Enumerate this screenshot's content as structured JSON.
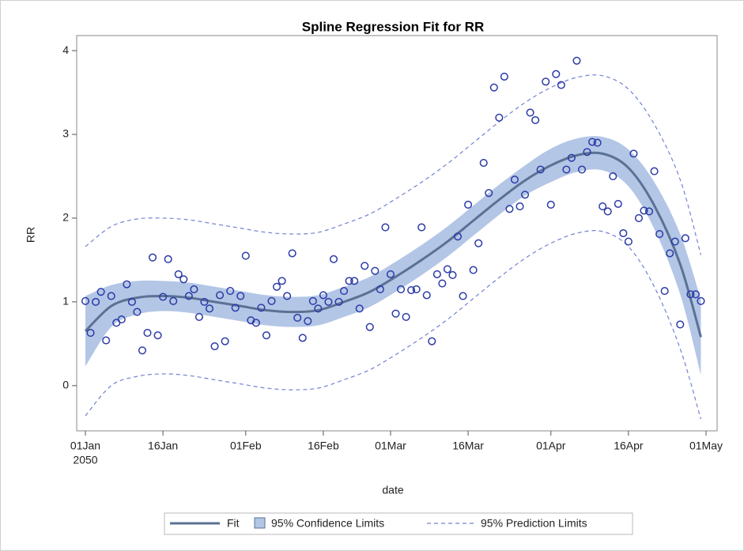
{
  "chart_data": {
    "type": "scatter",
    "title": "Spline Regression Fit for RR",
    "x_label": "date",
    "y_label": "RR",
    "color": "#2b3ba6",
    "x": [
      "2050-01-01",
      "2050-01-02",
      "2050-01-03",
      "2050-01-04",
      "2050-01-05",
      "2050-01-06",
      "2050-01-07",
      "2050-01-08",
      "2050-01-09",
      "2050-01-10",
      "2050-01-11",
      "2050-01-12",
      "2050-01-13",
      "2050-01-14",
      "2050-01-15",
      "2050-01-16",
      "2050-01-17",
      "2050-01-18",
      "2050-01-19",
      "2050-01-20",
      "2050-01-21",
      "2050-01-22",
      "2050-01-23",
      "2050-01-24",
      "2050-01-25",
      "2050-01-26",
      "2050-01-27",
      "2050-01-28",
      "2050-01-29",
      "2050-01-30",
      "2050-01-31",
      "2050-02-01",
      "2050-02-02",
      "2050-02-03",
      "2050-02-04",
      "2050-02-05",
      "2050-02-06",
      "2050-02-07",
      "2050-02-08",
      "2050-02-09",
      "2050-02-10",
      "2050-02-11",
      "2050-02-12",
      "2050-02-13",
      "2050-02-14",
      "2050-02-15",
      "2050-02-16",
      "2050-02-17",
      "2050-02-18",
      "2050-02-19",
      "2050-02-20",
      "2050-02-21",
      "2050-02-22",
      "2050-02-23",
      "2050-02-24",
      "2050-02-25",
      "2050-02-26",
      "2050-02-27",
      "2050-02-28",
      "2050-03-01",
      "2050-03-02",
      "2050-03-03",
      "2050-03-04",
      "2050-03-05",
      "2050-03-06",
      "2050-03-07",
      "2050-03-08",
      "2050-03-09",
      "2050-03-10",
      "2050-03-11",
      "2050-03-12",
      "2050-03-13",
      "2050-03-14",
      "2050-03-15",
      "2050-03-16",
      "2050-03-17",
      "2050-03-18",
      "2050-03-19",
      "2050-03-20",
      "2050-03-21",
      "2050-03-22",
      "2050-03-23",
      "2050-03-24",
      "2050-03-25",
      "2050-03-26",
      "2050-03-27",
      "2050-03-28",
      "2050-03-29",
      "2050-03-30",
      "2050-03-31",
      "2050-04-01",
      "2050-04-02",
      "2050-04-03",
      "2050-04-04",
      "2050-04-05",
      "2050-04-06",
      "2050-04-07",
      "2050-04-08",
      "2050-04-09",
      "2050-04-10",
      "2050-04-11",
      "2050-04-12",
      "2050-04-13",
      "2050-04-14",
      "2050-04-15",
      "2050-04-16",
      "2050-04-17",
      "2050-04-18",
      "2050-04-19",
      "2050-04-20",
      "2050-04-21",
      "2050-04-22",
      "2050-04-23",
      "2050-04-24",
      "2050-04-25",
      "2050-04-26",
      "2050-04-27",
      "2050-04-28",
      "2050-04-29",
      "2050-04-30"
    ],
    "values": [
      1.01,
      0.63,
      1.0,
      1.12,
      0.54,
      1.07,
      0.75,
      0.79,
      1.21,
      1.0,
      0.88,
      0.42,
      0.63,
      1.53,
      0.6,
      1.06,
      1.51,
      1.01,
      1.33,
      1.27,
      1.07,
      1.15,
      0.82,
      1.0,
      0.92,
      0.47,
      1.08,
      0.53,
      1.13,
      0.93,
      1.07,
      1.55,
      0.78,
      0.75,
      0.93,
      0.6,
      1.01,
      1.18,
      1.25,
      1.07,
      1.58,
      0.81,
      0.57,
      0.77,
      1.01,
      0.92,
      1.08,
      1.0,
      1.51,
      1.0,
      1.13,
      1.25,
      1.25,
      0.92,
      1.43,
      0.7,
      1.37,
      1.15,
      1.89,
      1.33,
      0.86,
      1.15,
      0.82,
      1.14,
      1.15,
      1.89,
      1.08,
      0.53,
      1.33,
      1.22,
      1.39,
      1.32,
      1.78,
      1.07,
      2.16,
      1.38,
      1.7,
      2.66,
      2.3,
      3.56,
      3.2,
      3.69,
      2.11,
      2.46,
      2.14,
      2.28,
      3.26,
      3.17,
      2.58,
      3.63,
      2.16,
      3.72,
      3.59,
      2.58,
      2.72,
      3.88,
      2.58,
      2.79,
      2.91,
      2.9,
      2.14,
      2.08,
      2.5,
      2.17,
      1.82,
      1.72,
      2.77,
      2.0,
      2.09,
      2.08,
      2.56,
      1.81,
      1.13,
      1.58,
      1.72,
      0.73,
      1.76,
      1.09,
      1.09,
      1.01
    ],
    "curve_x": [
      "2050-01-01",
      "2050-01-06",
      "2050-01-11",
      "2050-01-16",
      "2050-01-21",
      "2050-01-26",
      "2050-01-31",
      "2050-02-05",
      "2050-02-10",
      "2050-02-15",
      "2050-02-20",
      "2050-02-25",
      "2050-03-02",
      "2050-03-07",
      "2050-03-12",
      "2050-03-17",
      "2050-03-22",
      "2050-03-27",
      "2050-04-01",
      "2050-04-06",
      "2050-04-11",
      "2050-04-16",
      "2050-04-21",
      "2050-04-26",
      "2050-04-30"
    ],
    "fit": {
      "name": "Fit",
      "color": "#5b7194",
      "values": [
        0.65,
        0.95,
        1.05,
        1.07,
        1.05,
        1.0,
        0.95,
        0.9,
        0.88,
        0.9,
        1.0,
        1.12,
        1.3,
        1.5,
        1.72,
        1.97,
        2.22,
        2.45,
        2.63,
        2.75,
        2.77,
        2.6,
        2.15,
        1.45,
        0.58
      ]
    },
    "confidence": {
      "name": "95% Confidence Limits",
      "color": "#b3c6e6",
      "lower": [
        0.23,
        0.7,
        0.85,
        0.89,
        0.87,
        0.82,
        0.77,
        0.72,
        0.7,
        0.72,
        0.82,
        0.94,
        1.12,
        1.32,
        1.54,
        1.79,
        2.04,
        2.27,
        2.43,
        2.55,
        2.57,
        2.38,
        1.87,
        1.09,
        0.13
      ],
      "upper": [
        1.07,
        1.2,
        1.25,
        1.25,
        1.23,
        1.18,
        1.13,
        1.08,
        1.06,
        1.08,
        1.18,
        1.3,
        1.48,
        1.68,
        1.9,
        2.15,
        2.4,
        2.63,
        2.83,
        2.95,
        2.97,
        2.82,
        2.43,
        1.81,
        1.03
      ]
    },
    "prediction": {
      "name": "95% Prediction Limits",
      "color": "#7282d2",
      "lower": [
        -0.36,
        0.0,
        0.11,
        0.14,
        0.12,
        0.07,
        0.02,
        -0.03,
        -0.05,
        -0.03,
        0.07,
        0.19,
        0.37,
        0.57,
        0.79,
        1.04,
        1.29,
        1.52,
        1.7,
        1.82,
        1.84,
        1.66,
        1.18,
        0.44,
        -0.4
      ],
      "upper": [
        1.66,
        1.9,
        1.99,
        2.0,
        1.98,
        1.93,
        1.88,
        1.83,
        1.81,
        1.83,
        1.93,
        2.05,
        2.23,
        2.43,
        2.65,
        2.9,
        3.15,
        3.38,
        3.56,
        3.68,
        3.7,
        3.54,
        3.12,
        2.46,
        1.56
      ]
    },
    "xlim": [
      "2050-01-01",
      "2050-05-01"
    ],
    "xticks": [
      {
        "value": "2050-01-01",
        "label": "01Jan"
      },
      {
        "value": "2050-01-16",
        "label": "16Jan"
      },
      {
        "value": "2050-02-01",
        "label": "01Feb"
      },
      {
        "value": "2050-02-16",
        "label": "16Feb"
      },
      {
        "value": "2050-03-01",
        "label": "01Mar"
      },
      {
        "value": "2050-03-16",
        "label": "16Mar"
      },
      {
        "value": "2050-04-01",
        "label": "01Apr"
      },
      {
        "value": "2050-04-16",
        "label": "16Apr"
      },
      {
        "value": "2050-05-01",
        "label": "01May"
      }
    ],
    "x_tick_year": "2050",
    "ylim": [
      -0.54,
      4.18
    ],
    "yticks": [
      0,
      1,
      2,
      3,
      4
    ],
    "grid": false
  }
}
